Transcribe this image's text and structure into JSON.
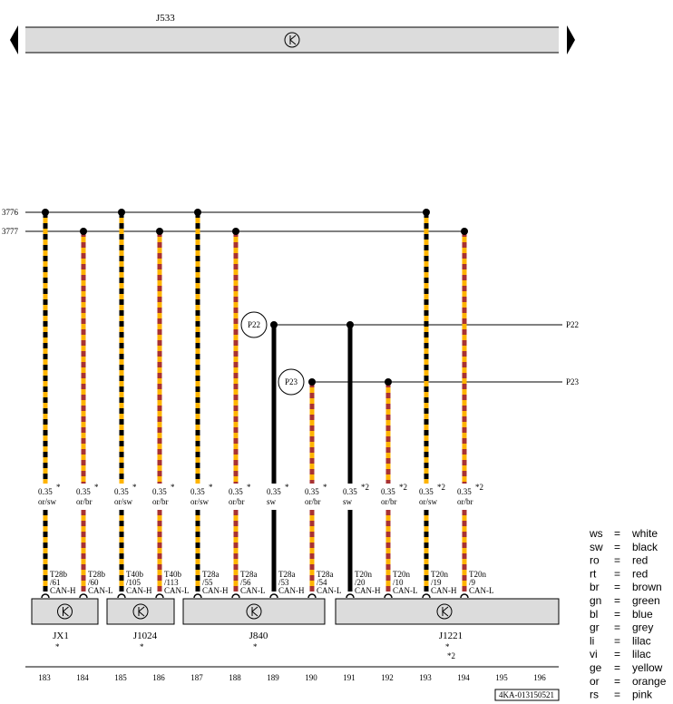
{
  "bus": {
    "title": "J533"
  },
  "lines": [
    "3776",
    "3777"
  ],
  "splices": [
    {
      "name": "P22",
      "right": "P22"
    },
    {
      "name": "P23",
      "right": "P23"
    }
  ],
  "wires": [
    {
      "size": "0.35",
      "note": "*",
      "color": "or/sw",
      "connector": "T28b",
      "pin": "/61",
      "signal": "CAN-H"
    },
    {
      "size": "0.35",
      "note": "*",
      "color": "or/br",
      "connector": "T28b",
      "pin": "/60",
      "signal": "CAN-L"
    },
    {
      "size": "0.35",
      "note": "*",
      "color": "or/sw",
      "connector": "T40b",
      "pin": "/105",
      "signal": "CAN-H"
    },
    {
      "size": "0.35",
      "note": "*",
      "color": "or/br",
      "connector": "T40b",
      "pin": "/113",
      "signal": "CAN-L"
    },
    {
      "size": "0.35",
      "note": "*",
      "color": "or/sw",
      "connector": "T28a",
      "pin": "/55",
      "signal": "CAN-H"
    },
    {
      "size": "0.35",
      "note": "*",
      "color": "or/br",
      "connector": "T28a",
      "pin": "/56",
      "signal": "CAN-L"
    },
    {
      "size": "0.35",
      "note": "*",
      "color": "sw",
      "connector": "T28a",
      "pin": "/53",
      "signal": "CAN-H"
    },
    {
      "size": "0.35",
      "note": "*",
      "color": "or/br",
      "connector": "T28a",
      "pin": "/54",
      "signal": "CAN-L"
    },
    {
      "size": "0.35",
      "note": "*2",
      "color": "sw",
      "connector": "T20n",
      "pin": "/20",
      "signal": "CAN-H"
    },
    {
      "size": "0.35",
      "note": "*2",
      "color": "or/br",
      "connector": "T20n",
      "pin": "/10",
      "signal": "CAN-L"
    },
    {
      "size": "0.35",
      "note": "*2",
      "color": "or/sw",
      "connector": "T20n",
      "pin": "/19",
      "signal": "CAN-H"
    },
    {
      "size": "0.35",
      "note": "*2",
      "color": "or/br",
      "connector": "T20n",
      "pin": "/9",
      "signal": "CAN-L"
    }
  ],
  "components": [
    {
      "name": "JX1",
      "notes": [
        "*"
      ]
    },
    {
      "name": "J1024",
      "notes": [
        "*"
      ]
    },
    {
      "name": "J840",
      "notes": [
        "*"
      ]
    },
    {
      "name": "J1221",
      "notes": [
        "*",
        "*2"
      ]
    }
  ],
  "grid": [
    "183",
    "184",
    "185",
    "186",
    "187",
    "188",
    "189",
    "190",
    "191",
    "192",
    "193",
    "194",
    "195",
    "196"
  ],
  "legend": [
    {
      "code": "ws",
      "eq": "=",
      "color": "white"
    },
    {
      "code": "sw",
      "eq": "=",
      "color": "black"
    },
    {
      "code": "ro",
      "eq": "=",
      "color": "red"
    },
    {
      "code": "rt",
      "eq": "=",
      "color": "red"
    },
    {
      "code": "br",
      "eq": "=",
      "color": "brown"
    },
    {
      "code": "gn",
      "eq": "=",
      "color": "green"
    },
    {
      "code": "bl",
      "eq": "=",
      "color": "blue"
    },
    {
      "code": "gr",
      "eq": "=",
      "color": "grey"
    },
    {
      "code": "li",
      "eq": "=",
      "color": "lilac"
    },
    {
      "code": "vi",
      "eq": "=",
      "color": "lilac"
    },
    {
      "code": "ge",
      "eq": "=",
      "color": "yellow"
    },
    {
      "code": "or",
      "eq": "=",
      "color": "orange"
    },
    {
      "code": "rs",
      "eq": "=",
      "color": "pink"
    }
  ],
  "footer": {
    "code": "4KA-013150521"
  }
}
